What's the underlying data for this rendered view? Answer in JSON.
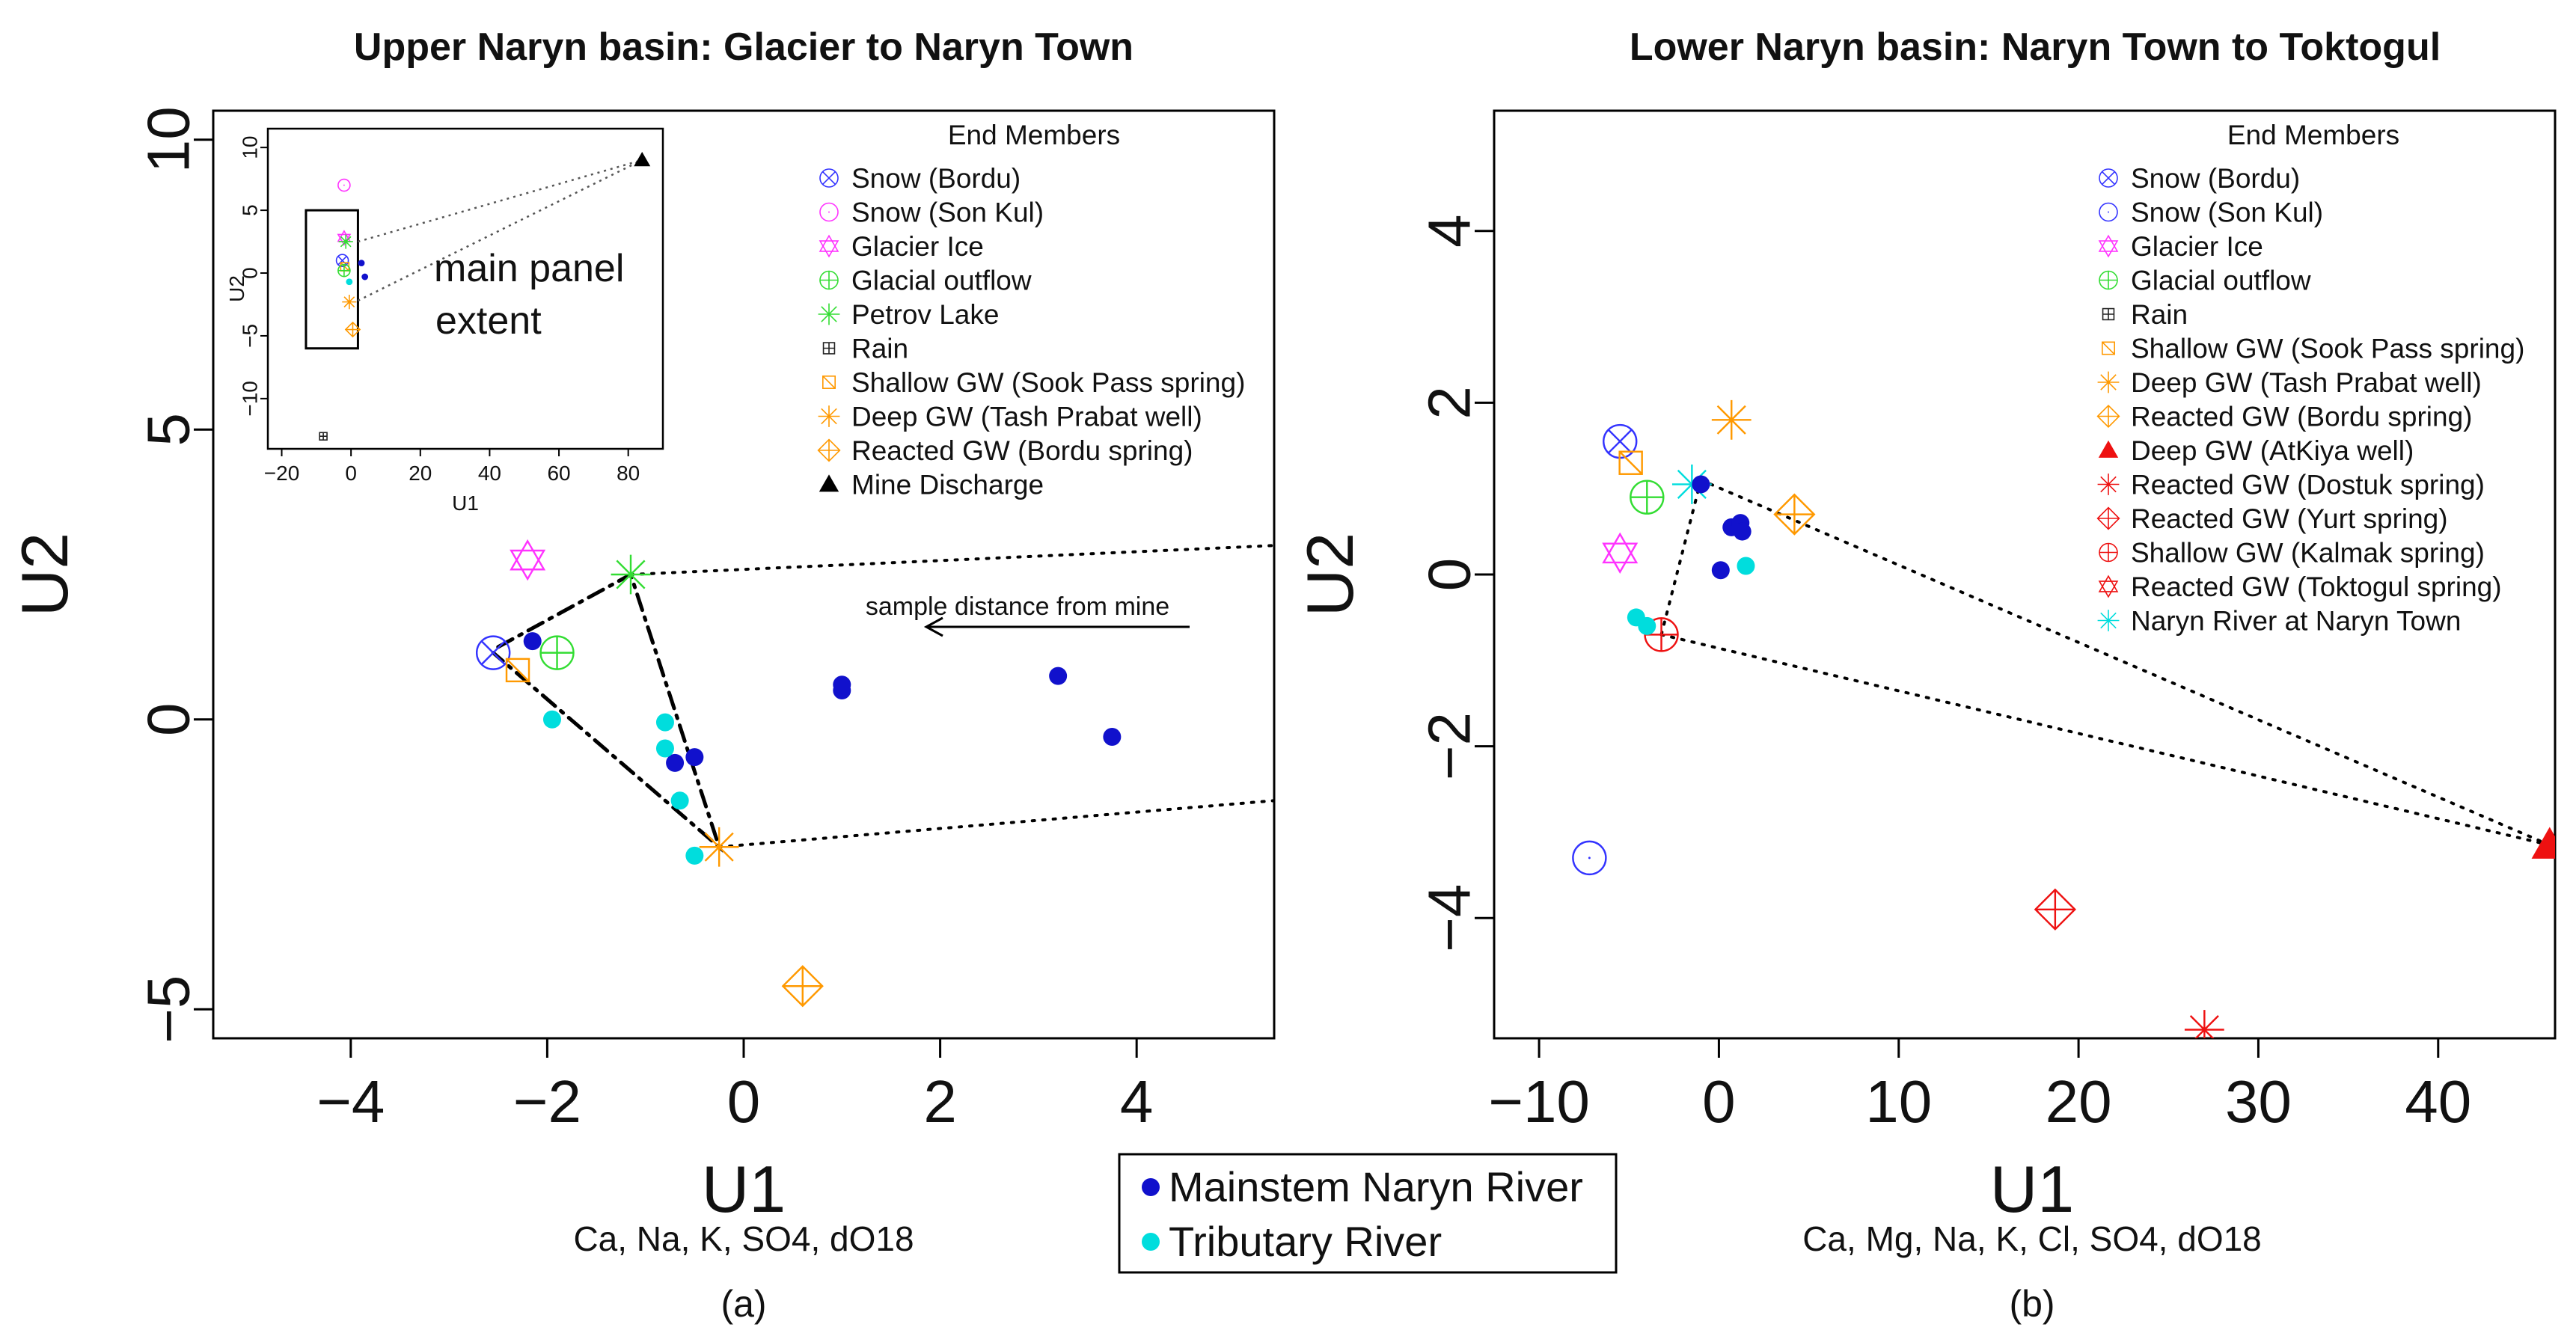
{
  "chart_data": [
    {
      "type": "scatter",
      "panel_label": "(a)",
      "title": "Upper Naryn basin: Glacier to Naryn Town",
      "xlabel": "U1",
      "ylabel": "U2",
      "subtitle": "Ca, Na, K, SO4, dO18",
      "xlim": [
        -5.4,
        5.4
      ],
      "ylim": [
        -5.5,
        10.5
      ],
      "xticks": [
        -4,
        -2,
        0,
        2,
        4
      ],
      "yticks": [
        -5,
        0,
        5,
        10
      ],
      "legend_title": "End Members",
      "legend": [
        {
          "label": "Snow (Bordu)",
          "marker": "circle-x",
          "color": "#3333ff"
        },
        {
          "label": "Snow (Son Kul)",
          "marker": "circle",
          "color": "#ff33ff"
        },
        {
          "label": "Glacier Ice",
          "marker": "star-of-david",
          "color": "#ff33ff"
        },
        {
          "label": "Glacial outflow",
          "marker": "circle-plus",
          "color": "#33dd33"
        },
        {
          "label": "Petrov Lake",
          "marker": "asterisk",
          "color": "#33dd33"
        },
        {
          "label": "Rain",
          "marker": "square-plus",
          "color": "#222222"
        },
        {
          "label": "Shallow GW (Sook Pass spring)",
          "marker": "square-x",
          "color": "#ff9900"
        },
        {
          "label": "Deep GW (Tash Prabat well)",
          "marker": "asterisk",
          "color": "#ff9900"
        },
        {
          "label": "Reacted GW (Bordu spring)",
          "marker": "diamond-plus",
          "color": "#ff9900"
        },
        {
          "label": "Mine Discharge",
          "marker": "triangle",
          "color": "#000000"
        }
      ],
      "end_members": [
        {
          "name": "Snow (Bordu)",
          "x": -2.55,
          "y": 1.15
        },
        {
          "name": "Glacier Ice",
          "x": -2.2,
          "y": 2.75
        },
        {
          "name": "Glacial outflow",
          "x": -1.9,
          "y": 1.15
        },
        {
          "name": "Petrov Lake",
          "x": -1.15,
          "y": 2.5
        },
        {
          "name": "Shallow GW (Sook Pass spring)",
          "x": -2.3,
          "y": 0.85
        },
        {
          "name": "Deep GW (Tash Prabat well)",
          "x": -0.25,
          "y": -2.2
        },
        {
          "name": "Reacted GW (Bordu spring)",
          "x": 0.6,
          "y": -4.6
        }
      ],
      "mixing_lines": [
        {
          "style": "dotdash",
          "path": [
            [
              -2.5,
              1.25
            ],
            [
              -1.15,
              2.5
            ],
            [
              -0.25,
              -2.2
            ],
            [
              -2.55,
              1.15
            ]
          ]
        },
        {
          "style": "dotted",
          "path": [
            [
              -1.15,
              2.5
            ],
            [
              5.4,
              3.0
            ]
          ]
        },
        {
          "style": "dotted",
          "path": [
            [
              -0.25,
              -2.2
            ],
            [
              5.4,
              -1.4
            ]
          ]
        }
      ],
      "series": [
        {
          "name": "Mainstem Naryn River",
          "color": "#1111cc",
          "points": [
            [
              -2.15,
              1.35
            ],
            [
              -0.7,
              -0.75
            ],
            [
              -0.5,
              -0.65
            ],
            [
              1.0,
              0.5
            ],
            [
              1.0,
              0.6
            ],
            [
              3.2,
              0.75
            ],
            [
              3.75,
              -0.3
            ]
          ]
        },
        {
          "name": "Tributary River",
          "color": "#00dddd",
          "points": [
            [
              -1.95,
              0.0
            ],
            [
              -0.8,
              -0.05
            ],
            [
              -0.8,
              -0.5
            ],
            [
              -0.65,
              -1.4
            ],
            [
              -0.5,
              -2.35
            ]
          ]
        }
      ],
      "annotation": "sample distance from mine",
      "inset": {
        "xlabel": "U1",
        "ylabel": "U2",
        "xticks": [
          -20,
          0,
          20,
          40,
          60,
          80
        ],
        "yticks": [
          -10,
          -5,
          0,
          5,
          10
        ],
        "xlim": [
          -24,
          90
        ],
        "ylim": [
          -14,
          11.5
        ],
        "note": [
          "main panel",
          "extent"
        ],
        "extent_box": {
          "x": [
            -13,
            2
          ],
          "y": [
            -6,
            5
          ]
        },
        "points": [
          {
            "x": -2.0,
            "y": 7.0,
            "marker": "circle",
            "color": "#ff33ff"
          },
          {
            "x": -2.0,
            "y": 2.8,
            "marker": "star-of-david",
            "color": "#ff33ff"
          },
          {
            "x": -1.5,
            "y": 2.5,
            "marker": "asterisk",
            "color": "#33dd33"
          },
          {
            "x": -2.5,
            "y": 1.0,
            "marker": "circle-x",
            "color": "#3333ff"
          },
          {
            "x": -1.8,
            "y": 0.5,
            "marker": "square-x",
            "color": "#ff9900"
          },
          {
            "x": -2.0,
            "y": 0.2,
            "marker": "circle-plus",
            "color": "#33dd33"
          },
          {
            "x": 3.0,
            "y": 0.8,
            "marker": "dot",
            "color": "#1111cc"
          },
          {
            "x": 4.0,
            "y": -0.3,
            "marker": "dot",
            "color": "#1111cc"
          },
          {
            "x": -0.5,
            "y": -0.7,
            "marker": "dot",
            "color": "#00dddd"
          },
          {
            "x": -0.5,
            "y": -2.3,
            "marker": "asterisk",
            "color": "#ff9900"
          },
          {
            "x": 0.5,
            "y": -4.5,
            "marker": "diamond-plus",
            "color": "#ff9900"
          },
          {
            "x": -8.0,
            "y": -13.0,
            "marker": "square-plus",
            "color": "#222222"
          },
          {
            "x": 84.0,
            "y": 9.0,
            "marker": "triangle",
            "color": "#000000"
          }
        ],
        "lines": [
          {
            "style": "dotted",
            "path": [
              [
                2,
                2.5
              ],
              [
                84,
                9
              ]
            ]
          },
          {
            "style": "dotted",
            "path": [
              [
                2,
                -2.2
              ],
              [
                84,
                9
              ]
            ]
          }
        ]
      }
    },
    {
      "type": "scatter",
      "panel_label": "(b)",
      "title": "Lower Naryn basin: Naryn Town to Toktogul",
      "xlabel": "U1",
      "ylabel": "U2",
      "subtitle": "Ca, Mg, Na, K, Cl, SO4, dO18",
      "xlim": [
        -12.5,
        46.5
      ],
      "ylim": [
        -5.4,
        5.4
      ],
      "xticks": [
        -10,
        0,
        10,
        20,
        30,
        40
      ],
      "yticks": [
        -4,
        -2,
        0,
        2,
        4
      ],
      "legend_title": "End Members",
      "legend": [
        {
          "label": "Snow (Bordu)",
          "marker": "circle-x",
          "color": "#3333ff"
        },
        {
          "label": "Snow (Son Kul)",
          "marker": "circle",
          "color": "#3333ff"
        },
        {
          "label": "Glacier Ice",
          "marker": "star-of-david",
          "color": "#ff33ff"
        },
        {
          "label": "Glacial outflow",
          "marker": "circle-plus",
          "color": "#33dd33"
        },
        {
          "label": "Rain",
          "marker": "square-plus",
          "color": "#222222"
        },
        {
          "label": "Shallow GW (Sook Pass spring)",
          "marker": "square-x",
          "color": "#ff9900"
        },
        {
          "label": "Deep GW (Tash Prabat well)",
          "marker": "asterisk",
          "color": "#ff9900"
        },
        {
          "label": "Reacted GW (Bordu spring)",
          "marker": "diamond-plus",
          "color": "#ff9900"
        },
        {
          "label": "Deep GW (AtKiya well)",
          "marker": "triangle-filled",
          "color": "#ee1111"
        },
        {
          "label": "Reacted GW (Dostuk spring)",
          "marker": "asterisk",
          "color": "#ee1111"
        },
        {
          "label": "Reacted GW (Yurt spring)",
          "marker": "diamond-plus",
          "color": "#ee1111"
        },
        {
          "label": "Shallow GW (Kalmak spring)",
          "marker": "circle-plus",
          "color": "#ee1111"
        },
        {
          "label": "Reacted GW (Toktogul spring)",
          "marker": "star-of-david",
          "color": "#ee1111"
        },
        {
          "label": "Naryn River at Naryn Town",
          "marker": "asterisk",
          "color": "#00dddd"
        }
      ],
      "end_members": [
        {
          "name": "Snow (Bordu)",
          "x": -5.5,
          "y": 1.55
        },
        {
          "name": "Snow (Son Kul)",
          "x": -7.2,
          "y": -3.3
        },
        {
          "name": "Glacier Ice",
          "x": -5.5,
          "y": 0.25
        },
        {
          "name": "Glacial outflow",
          "x": -4.0,
          "y": 0.9
        },
        {
          "name": "Shallow GW (Sook Pass spring)",
          "x": -4.9,
          "y": 1.3
        },
        {
          "name": "Deep GW (Tash Prabat well)",
          "x": 0.7,
          "y": 1.8
        },
        {
          "name": "Reacted GW (Bordu spring)",
          "x": 4.2,
          "y": 0.7
        },
        {
          "name": "Deep GW (AtKiya well)",
          "x": 46.2,
          "y": -3.15
        },
        {
          "name": "Reacted GW (Dostuk spring)",
          "x": 27.0,
          "y": -5.3
        },
        {
          "name": "Reacted GW (Yurt spring)",
          "x": 18.7,
          "y": -3.9
        },
        {
          "name": "Shallow GW (Kalmak spring)",
          "x": -3.2,
          "y": -0.7
        },
        {
          "name": "Naryn River at Naryn Town",
          "x": -1.5,
          "y": 1.05
        }
      ],
      "mixing_lines": [
        {
          "style": "dotted",
          "path": [
            [
              -1.0,
              1.1
            ],
            [
              46.2,
              -3.15
            ]
          ]
        },
        {
          "style": "dotted",
          "path": [
            [
              -3.2,
              -0.7
            ],
            [
              46.2,
              -3.15
            ]
          ]
        },
        {
          "style": "dotted",
          "path": [
            [
              -1.0,
              1.1
            ],
            [
              -3.2,
              -0.7
            ]
          ]
        }
      ],
      "series": [
        {
          "name": "Mainstem Naryn River",
          "color": "#1111cc",
          "points": [
            [
              -1.0,
              1.05
            ],
            [
              0.7,
              0.55
            ],
            [
              1.2,
              0.6
            ],
            [
              1.3,
              0.5
            ],
            [
              0.1,
              0.05
            ]
          ]
        },
        {
          "name": "Tributary River",
          "color": "#00dddd",
          "points": [
            [
              -4.6,
              -0.5
            ],
            [
              -4.0,
              -0.6
            ],
            [
              1.5,
              0.1
            ]
          ]
        }
      ]
    }
  ],
  "shared_legend": [
    {
      "label": "Mainstem Naryn River",
      "color": "#1111cc"
    },
    {
      "label": "Tributary River",
      "color": "#00dddd"
    }
  ]
}
